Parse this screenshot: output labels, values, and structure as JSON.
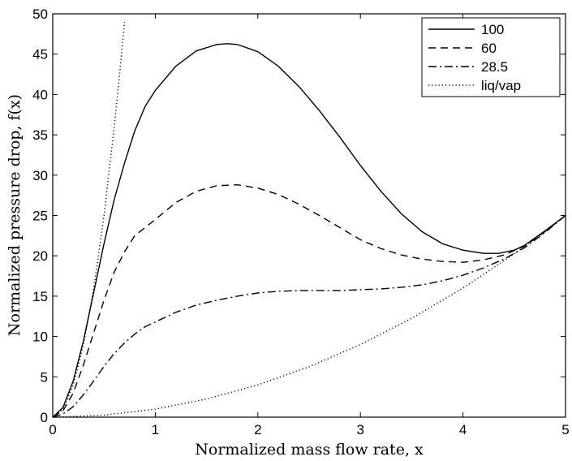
{
  "chart_data": {
    "type": "line",
    "title": "",
    "xlabel": "Normalized mass flow rate, x",
    "ylabel": "Normalized pressure drop, f(x)",
    "xlim": [
      0,
      5
    ],
    "ylim": [
      0,
      50
    ],
    "xticks": [
      0,
      1,
      2,
      3,
      4,
      5
    ],
    "yticks": [
      0,
      5,
      10,
      15,
      20,
      25,
      30,
      35,
      40,
      45,
      50
    ],
    "grid": false,
    "legend_position": "top-right",
    "series": [
      {
        "name": "100",
        "style": "solid",
        "color": "#000000",
        "x": [
          0,
          0.1,
          0.2,
          0.3,
          0.4,
          0.5,
          0.6,
          0.7,
          0.8,
          0.9,
          1.0,
          1.2,
          1.4,
          1.6,
          1.7,
          1.8,
          2.0,
          2.2,
          2.4,
          2.6,
          2.8,
          3.0,
          3.2,
          3.4,
          3.6,
          3.8,
          4.0,
          4.2,
          4.35,
          4.5,
          4.6,
          4.8,
          5.0
        ],
        "y": [
          0,
          1.2,
          4.5,
          9.5,
          15.5,
          21.5,
          27,
          31.5,
          35.5,
          38.5,
          40.5,
          43.5,
          45.4,
          46.2,
          46.3,
          46.2,
          45.3,
          43.5,
          41,
          38,
          34.7,
          31.2,
          28,
          25.2,
          23,
          21.5,
          20.7,
          20.3,
          20.3,
          20.7,
          21.3,
          23.1,
          25
        ]
      },
      {
        "name": "60",
        "style": "dashed",
        "color": "#000000",
        "x": [
          0,
          0.1,
          0.2,
          0.3,
          0.4,
          0.5,
          0.6,
          0.7,
          0.8,
          0.9,
          1.0,
          1.2,
          1.4,
          1.6,
          1.8,
          2.0,
          2.2,
          2.4,
          2.6,
          2.8,
          3.0,
          3.2,
          3.4,
          3.6,
          3.8,
          4.0,
          4.2,
          4.4,
          4.6,
          4.8,
          5.0
        ],
        "y": [
          0,
          0.8,
          3,
          6.5,
          10.5,
          14.5,
          18,
          20.5,
          22.5,
          23.5,
          24.5,
          26.6,
          28,
          28.7,
          28.8,
          28.4,
          27.6,
          26.4,
          25,
          23.5,
          22,
          20.9,
          20.1,
          19.6,
          19.3,
          19.2,
          19.5,
          20.1,
          21.2,
          23,
          25
        ]
      },
      {
        "name": "28.5",
        "style": "dashdot",
        "color": "#000000",
        "x": [
          0,
          0.1,
          0.2,
          0.3,
          0.4,
          0.5,
          0.6,
          0.7,
          0.8,
          0.9,
          1.0,
          1.2,
          1.4,
          1.6,
          1.8,
          2.0,
          2.2,
          2.4,
          2.6,
          2.8,
          3.0,
          3.2,
          3.4,
          3.6,
          3.8,
          4.0,
          4.2,
          4.4,
          4.6,
          4.8,
          5.0
        ],
        "y": [
          0,
          0.4,
          1.3,
          2.8,
          4.5,
          6.3,
          7.9,
          9.2,
          10.3,
          11.2,
          11.8,
          13,
          13.9,
          14.5,
          15,
          15.4,
          15.6,
          15.7,
          15.7,
          15.7,
          15.8,
          15.9,
          16.1,
          16.4,
          16.9,
          17.6,
          18.5,
          19.6,
          21,
          22.9,
          25
        ]
      },
      {
        "name": "liq/vap",
        "style": "dotted",
        "color": "#000000",
        "x": [
          0,
          0.5,
          1.0,
          1.5,
          2.0,
          2.5,
          3.0,
          3.5,
          4.0,
          4.5,
          5.0,
          null,
          0,
          0.1,
          0.2,
          0.3,
          0.4,
          0.5,
          0.6,
          0.65,
          0.7
        ],
        "y": [
          0,
          0.25,
          1,
          2.25,
          4,
          6.25,
          9,
          12.25,
          16,
          20.25,
          25,
          null,
          0,
          1,
          4,
          9,
          16,
          25,
          36,
          42.25,
          49
        ]
      }
    ]
  }
}
